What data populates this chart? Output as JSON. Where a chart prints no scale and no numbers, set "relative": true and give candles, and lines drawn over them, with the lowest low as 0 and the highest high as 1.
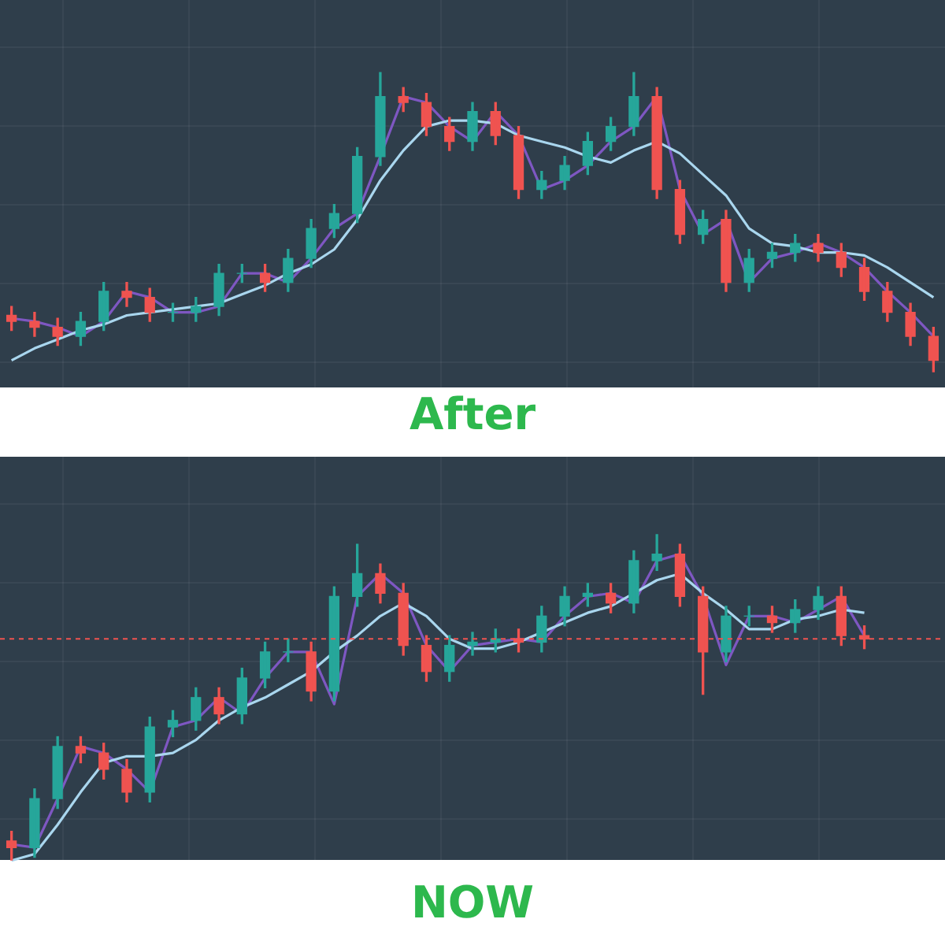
{
  "chart_data": [
    {
      "type": "candlestick",
      "title": "After",
      "relative": true,
      "categories": [
        null,
        null,
        null,
        null,
        null,
        null,
        null,
        null,
        null,
        null,
        null,
        null,
        null,
        null,
        null,
        null,
        null,
        null,
        null,
        null,
        null,
        null,
        null,
        null,
        null,
        null,
        null,
        null,
        null,
        null,
        null,
        null,
        null,
        null,
        null,
        null,
        null,
        null,
        null,
        null,
        null
      ],
      "ohlc": [
        [
          0.19,
          0.22,
          0.14,
          0.17
        ],
        [
          0.17,
          0.2,
          0.12,
          0.15
        ],
        [
          0.15,
          0.18,
          0.09,
          0.12
        ],
        [
          0.12,
          0.2,
          0.09,
          0.17
        ],
        [
          0.17,
          0.3,
          0.14,
          0.27
        ],
        [
          0.27,
          0.3,
          0.22,
          0.25
        ],
        [
          0.25,
          0.28,
          0.17,
          0.2
        ],
        [
          0.2,
          0.23,
          0.17,
          0.2
        ],
        [
          0.2,
          0.25,
          0.17,
          0.22
        ],
        [
          0.22,
          0.36,
          0.19,
          0.33
        ],
        [
          0.33,
          0.36,
          0.3,
          0.33
        ],
        [
          0.33,
          0.36,
          0.27,
          0.3
        ],
        [
          0.3,
          0.41,
          0.27,
          0.38
        ],
        [
          0.38,
          0.51,
          0.35,
          0.48
        ],
        [
          0.48,
          0.56,
          0.45,
          0.53
        ],
        [
          0.53,
          0.75,
          0.5,
          0.72
        ],
        [
          0.72,
          1,
          0.69,
          0.92
        ],
        [
          0.92,
          0.95,
          0.87,
          0.9
        ],
        [
          0.9,
          0.93,
          0.79,
          0.82
        ],
        [
          0.82,
          0.85,
          0.74,
          0.77
        ],
        [
          0.77,
          0.9,
          0.74,
          0.87
        ],
        [
          0.87,
          0.9,
          0.76,
          0.79
        ],
        [
          0.79,
          0.82,
          0.58,
          0.61
        ],
        [
          0.61,
          0.67,
          0.58,
          0.64
        ],
        [
          0.64,
          0.72,
          0.61,
          0.69
        ],
        [
          0.69,
          0.8,
          0.66,
          0.77
        ],
        [
          0.77,
          0.85,
          0.74,
          0.82
        ],
        [
          0.82,
          1,
          0.79,
          0.92
        ],
        [
          0.92,
          0.95,
          0.58,
          0.61
        ],
        [
          0.61,
          0.64,
          0.43,
          0.46
        ],
        [
          0.46,
          0.54,
          0.43,
          0.51
        ],
        [
          0.51,
          0.54,
          0.27,
          0.3
        ],
        [
          0.3,
          0.41,
          0.27,
          0.38
        ],
        [
          0.38,
          0.43,
          0.35,
          0.4
        ],
        [
          0.4,
          0.46,
          0.37,
          0.43
        ],
        [
          0.43,
          0.46,
          0.37,
          0.4
        ],
        [
          0.4,
          0.43,
          0.32,
          0.35
        ],
        [
          0.35,
          0.38,
          0.24,
          0.27
        ],
        [
          0.27,
          0.3,
          0.17,
          0.2
        ],
        [
          0.2,
          0.23,
          0.09,
          0.12
        ],
        [
          0.12,
          0.15,
          0,
          0.04
        ]
      ],
      "series": [
        {
          "type": "line",
          "color": "#a9d6ee",
          "values": [
            0.04,
            0.08,
            0.11,
            0.14,
            0.16,
            0.19,
            0.2,
            0.21,
            0.22,
            0.23,
            0.26,
            0.29,
            0.33,
            0.36,
            0.41,
            0.51,
            0.64,
            0.74,
            0.82,
            0.84,
            0.84,
            0.83,
            0.79,
            0.77,
            0.75,
            0.72,
            0.7,
            0.74,
            0.77,
            0.73,
            0.66,
            0.59,
            0.48,
            0.43,
            0.42,
            0.4,
            0.4,
            0.39,
            0.35,
            0.3,
            0.25
          ]
        },
        {
          "type": "line",
          "color": "#7e57c2",
          "values": [
            0.18,
            0.17,
            0.15,
            0.12,
            0.17,
            0.27,
            0.25,
            0.2,
            0.2,
            0.22,
            0.33,
            0.33,
            0.3,
            0.38,
            0.48,
            0.53,
            0.72,
            0.92,
            0.9,
            0.82,
            0.77,
            0.87,
            0.79,
            0.61,
            0.64,
            0.69,
            0.77,
            0.82,
            0.92,
            0.61,
            0.46,
            0.51,
            0.3,
            0.38,
            0.4,
            0.43,
            0.4,
            0.35,
            0.27,
            0.2,
            0.12
          ]
        }
      ]
    },
    {
      "type": "candlestick",
      "title": "NOW",
      "relative": true,
      "categories": [
        null,
        null,
        null,
        null,
        null,
        null,
        null,
        null,
        null,
        null,
        null,
        null,
        null,
        null,
        null,
        null,
        null,
        null,
        null,
        null,
        null,
        null,
        null,
        null,
        null,
        null,
        null,
        null,
        null,
        null,
        null,
        null,
        null,
        null,
        null,
        null,
        null,
        null,
        null,
        null,
        null
      ],
      "ohlc": [
        [
          0.06,
          0.09,
          0,
          0.04
        ],
        [
          0.04,
          0.22,
          0.01,
          0.19
        ],
        [
          0.19,
          0.38,
          0.16,
          0.35
        ],
        [
          0.35,
          0.38,
          0.3,
          0.33
        ],
        [
          0.33,
          0.36,
          0.25,
          0.28
        ],
        [
          0.28,
          0.31,
          0.18,
          0.21
        ],
        [
          0.21,
          0.44,
          0.18,
          0.41
        ],
        [
          0.41,
          0.46,
          0.38,
          0.43
        ],
        [
          0.43,
          0.53,
          0.4,
          0.5
        ],
        [
          0.5,
          0.53,
          0.42,
          0.45
        ],
        [
          0.45,
          0.59,
          0.42,
          0.56
        ],
        [
          0.56,
          0.67,
          0.53,
          0.64
        ],
        [
          0.64,
          0.68,
          0.61,
          0.64
        ],
        [
          0.64,
          0.67,
          0.49,
          0.52
        ],
        [
          0.52,
          0.84,
          0.49,
          0.81
        ],
        [
          0.81,
          0.97,
          0.78,
          0.88
        ],
        [
          0.88,
          0.91,
          0.79,
          0.82
        ],
        [
          0.82,
          0.85,
          0.63,
          0.66
        ],
        [
          0.66,
          0.69,
          0.55,
          0.58
        ],
        [
          0.58,
          0.69,
          0.55,
          0.66
        ],
        [
          0.66,
          0.7,
          0.63,
          0.67
        ],
        [
          0.67,
          0.71,
          0.64,
          0.68
        ],
        [
          0.68,
          0.71,
          0.64,
          0.67
        ],
        [
          0.67,
          0.78,
          0.64,
          0.75
        ],
        [
          0.75,
          0.84,
          0.72,
          0.81
        ],
        [
          0.81,
          0.85,
          0.78,
          0.82
        ],
        [
          0.82,
          0.85,
          0.76,
          0.79
        ],
        [
          0.79,
          0.95,
          0.76,
          0.92
        ],
        [
          0.92,
          1,
          0.89,
          0.94
        ],
        [
          0.94,
          0.97,
          0.78,
          0.81
        ],
        [
          0.81,
          0.84,
          0.51,
          0.64
        ],
        [
          0.64,
          0.78,
          0.61,
          0.75
        ],
        [
          0.75,
          0.78,
          0.72,
          0.75
        ],
        [
          0.75,
          0.78,
          0.7,
          0.73
        ],
        [
          0.73,
          0.8,
          0.7,
          0.77
        ],
        [
          0.77,
          0.84,
          0.74,
          0.81
        ],
        [
          0.81,
          0.84,
          0.66,
          0.69
        ],
        [
          0.69,
          0.72,
          0.65,
          0.68
        ],
        null,
        null,
        null
      ],
      "series": [
        {
          "type": "line",
          "color": "#a9d6ee",
          "values": [
            0,
            0.02,
            0.11,
            0.21,
            0.3,
            0.32,
            0.32,
            0.33,
            0.37,
            0.43,
            0.47,
            0.5,
            0.54,
            0.58,
            0.64,
            0.69,
            0.75,
            0.79,
            0.75,
            0.68,
            0.65,
            0.65,
            0.67,
            0.7,
            0.73,
            0.76,
            0.78,
            0.82,
            0.86,
            0.88,
            0.82,
            0.77,
            0.71,
            0.71,
            0.74,
            0.75,
            0.77,
            0.76,
            null,
            null,
            null
          ]
        },
        {
          "type": "line",
          "color": "#7e57c2",
          "values": [
            0.05,
            0.04,
            0.19,
            0.35,
            0.33,
            0.28,
            0.21,
            0.41,
            0.43,
            0.5,
            0.45,
            0.56,
            0.64,
            0.64,
            0.48,
            0.81,
            0.88,
            0.82,
            0.66,
            0.58,
            0.66,
            0.67,
            0.68,
            0.67,
            0.75,
            0.81,
            0.82,
            0.79,
            0.92,
            0.94,
            0.81,
            0.6,
            0.75,
            0.75,
            0.73,
            0.77,
            0.81,
            0.69,
            null,
            null,
            null
          ]
        }
      ],
      "ref_lines": [
        {
          "axis": "y",
          "value": 0.68,
          "color": "#ef5350",
          "line_style": "dashed"
        }
      ]
    }
  ]
}
